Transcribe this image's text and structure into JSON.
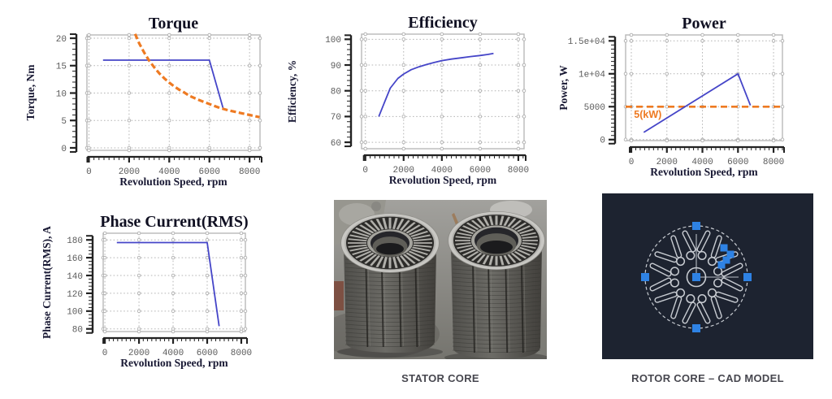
{
  "colors": {
    "series_blue": "#4545c8",
    "series_orange": "#ee7a22",
    "grid": "#b5b5b5",
    "axis": "#222222",
    "grip_blue": "#2e82e4",
    "cad_background": "#1d2330",
    "cad_line": "#c8ccd2",
    "caption_text": "#47474f"
  },
  "figures": {
    "stator": {
      "caption": "STATOR CORE"
    },
    "rotor": {
      "caption": "ROTOR CORE – CAD MODEL"
    }
  },
  "chart_data": [
    {
      "id": "torque",
      "type": "line",
      "title": "Torque",
      "xlabel": "Revolution Speed, rpm",
      "ylabel": "Torque, Nm",
      "xlim": [
        -100,
        8520
      ],
      "ylim": [
        -0.45,
        20.6
      ],
      "xticks": [
        0,
        2000,
        4000,
        6000,
        8000
      ],
      "xtick_labels": [
        "0",
        "2000",
        "4000",
        "6000",
        "8000"
      ],
      "yticks": [
        0,
        5,
        10,
        15,
        20
      ],
      "ytick_labels": [
        "0",
        "5",
        "10",
        "15",
        "20"
      ],
      "x_minor_step": 250,
      "y_minor_step": 1,
      "grid": true,
      "series": [
        {
          "name": "torque-vs-speed",
          "color": "#4545c8",
          "width": 1.8,
          "dash": null,
          "x": [
            700,
            6000,
            6700
          ],
          "y": [
            16,
            16,
            7
          ]
        },
        {
          "name": "constant-power-5kW-torque",
          "color": "#ee7a22",
          "width": 3.2,
          "dash": "7 3.5",
          "x": [
            2300,
            2500,
            2750,
            3000,
            3250,
            3500,
            3750,
            4000,
            4250,
            4500,
            4750,
            5000,
            5500,
            6000,
            6500,
            7000,
            7500,
            8000,
            8500
          ],
          "y": [
            20.8,
            19.1,
            17.4,
            15.9,
            14.7,
            13.6,
            12.7,
            11.9,
            11.2,
            10.6,
            10.1,
            9.5,
            8.7,
            8.0,
            7.3,
            6.8,
            6.4,
            6.0,
            5.6
          ]
        }
      ]
    },
    {
      "id": "efficiency",
      "type": "line",
      "title": "Efficiency",
      "xlabel": "Revolution Speed, rpm",
      "ylabel": "Efficiency, %",
      "xlim": [
        -200,
        8300
      ],
      "ylim": [
        57.5,
        102
      ],
      "xticks": [
        0,
        2000,
        4000,
        6000,
        8000
      ],
      "xtick_labels": [
        "0",
        "2000",
        "4000",
        "6000",
        "8000"
      ],
      "yticks": [
        60,
        70,
        80,
        90,
        100
      ],
      "ytick_labels": [
        "60",
        "70",
        "80",
        "90",
        "100"
      ],
      "x_minor_step": 250,
      "y_minor_step": 2,
      "grid": true,
      "series": [
        {
          "name": "efficiency-vs-speed",
          "color": "#4545c8",
          "width": 1.8,
          "dash": null,
          "x": [
            700,
            1000,
            1300,
            1700,
            2000,
            2400,
            2800,
            3200,
            3600,
            4000,
            4500,
            5000,
            5500,
            6000,
            6400,
            6700
          ],
          "y": [
            70,
            75.5,
            81,
            84.8,
            86.5,
            88.2,
            89.3,
            90.2,
            91.0,
            91.7,
            92.3,
            92.8,
            93.3,
            93.7,
            94.1,
            94.5
          ]
        }
      ]
    },
    {
      "id": "power",
      "type": "line",
      "title": "Power",
      "xlabel": "Revolution Speed, rpm",
      "ylabel": "Power, W",
      "xlim": [
        -320,
        8500
      ],
      "ylim": [
        -150,
        15900
      ],
      "xticks": [
        0,
        2000,
        4000,
        6000,
        8000
      ],
      "xtick_labels": [
        "0",
        "2000",
        "4000",
        "6000",
        "8000"
      ],
      "yticks": [
        0,
        5000,
        10000,
        15000
      ],
      "ytick_labels": [
        "0",
        "5000",
        "1e+04",
        "1.5e+04"
      ],
      "x_minor_step": 250,
      "y_minor_step": 625,
      "grid": true,
      "series": [
        {
          "name": "rated-power-5kW-line",
          "color": "#ee7a22",
          "width": 2.6,
          "dash": "8 5",
          "x": [
            -320,
            8500
          ],
          "y": [
            5000,
            5000
          ]
        },
        {
          "name": "power-vs-speed",
          "color": "#4545c8",
          "width": 1.8,
          "dash": null,
          "x": [
            700,
            6000,
            6700
          ],
          "y": [
            1100,
            10000,
            5200
          ]
        }
      ],
      "annotations": [
        {
          "text": "5(kW)",
          "x": 150,
          "y": 3300,
          "color": "#ee7a22",
          "anchor": "start"
        }
      ]
    },
    {
      "id": "phase",
      "type": "line",
      "title": "Phase Current(RMS)",
      "xlabel": "Revolution Speed, rpm",
      "ylabel": "Phase Current(RMS), A",
      "xlim": [
        -100,
        8240
      ],
      "ylim": [
        77,
        187.5
      ],
      "xticks": [
        0,
        2000,
        4000,
        6000,
        8000
      ],
      "xtick_labels": [
        "0",
        "2000",
        "4000",
        "6000",
        "8000"
      ],
      "yticks": [
        80,
        100,
        120,
        140,
        160,
        180
      ],
      "ytick_labels": [
        "80",
        "100",
        "120",
        "140",
        "160",
        "180"
      ],
      "x_minor_step": 250,
      "y_minor_step": 4,
      "grid": true,
      "series": [
        {
          "name": "phase-current-vs-speed",
          "color": "#4545c8",
          "width": 1.8,
          "dash": null,
          "x": [
            700,
            6000,
            6700
          ],
          "y": [
            177,
            177,
            83
          ]
        }
      ]
    }
  ]
}
